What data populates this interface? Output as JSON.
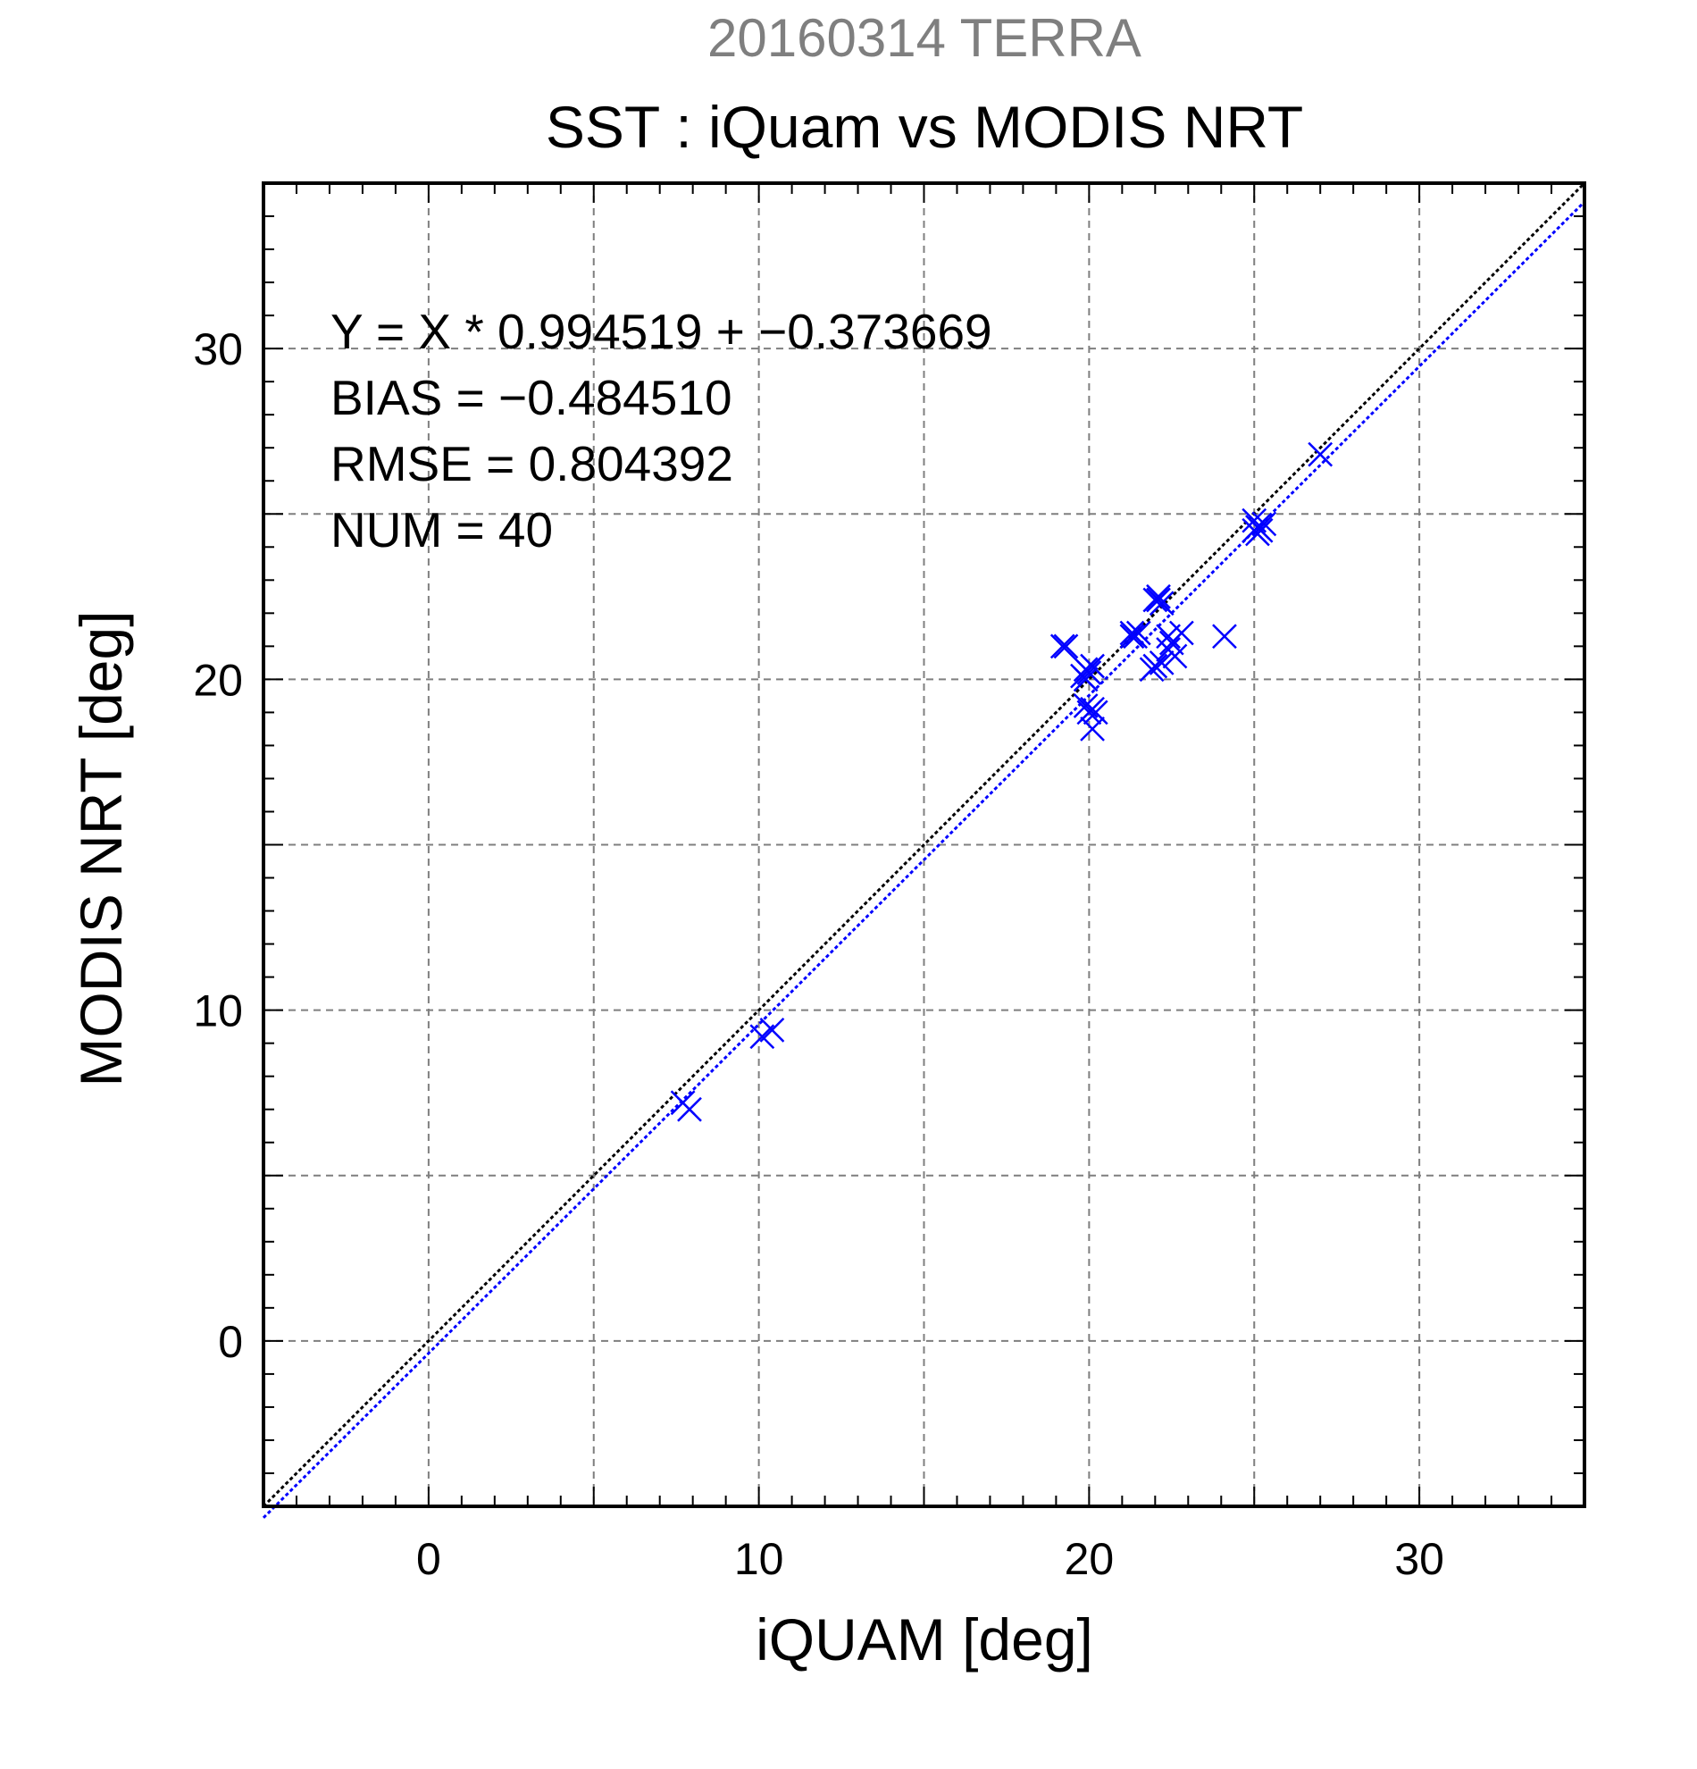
{
  "chart_data": {
    "type": "scatter",
    "suptitle": "20160314 TERRA",
    "title": "SST : iQuam vs MODIS NRT",
    "xlabel": "iQUAM [deg]",
    "ylabel": "MODIS NRT [deg]",
    "xlim": [
      -5,
      35
    ],
    "ylim": [
      -5,
      35
    ],
    "xticks": [
      0,
      10,
      20,
      30
    ],
    "yticks": [
      0,
      10,
      20,
      30
    ],
    "grid": true,
    "stats": {
      "equation": "Y = X * 0.994519 + −0.373669",
      "bias": "BIAS = −0.484510",
      "rmse": "RMSE = 0.804392",
      "num": "NUM = 40"
    },
    "fit": {
      "slope": 0.994519,
      "intercept": -0.373669
    },
    "colors": {
      "points": "#0000ff",
      "identity_line": "#000000",
      "fit_line": "#0000ff",
      "grid": "#7f7f7f",
      "suptitle": "#7f7f7f"
    },
    "points": [
      [
        7.7,
        7.2
      ],
      [
        7.9,
        7.0
      ],
      [
        10.1,
        9.2
      ],
      [
        10.4,
        9.4
      ],
      [
        19.2,
        21.0
      ],
      [
        19.3,
        21.0
      ],
      [
        19.8,
        20.1
      ],
      [
        19.9,
        20.3
      ],
      [
        20.0,
        20.2
      ],
      [
        20.1,
        20.4
      ],
      [
        20.1,
        19.1
      ],
      [
        20.2,
        19.0
      ],
      [
        20.1,
        18.5
      ],
      [
        19.9,
        19.2
      ],
      [
        21.3,
        21.3
      ],
      [
        21.4,
        21.3
      ],
      [
        21.5,
        21.4
      ],
      [
        21.3,
        21.4
      ],
      [
        22.0,
        22.4
      ],
      [
        22.1,
        22.4
      ],
      [
        22.2,
        22.3
      ],
      [
        22.0,
        20.4
      ],
      [
        22.2,
        20.5
      ],
      [
        22.4,
        21.3
      ],
      [
        22.5,
        21.1
      ],
      [
        22.6,
        20.7
      ],
      [
        22.8,
        21.4
      ],
      [
        22.4,
        20.9
      ],
      [
        24.1,
        21.3
      ],
      [
        25.0,
        24.8
      ],
      [
        25.1,
        24.6
      ],
      [
        25.2,
        24.5
      ],
      [
        25.3,
        24.7
      ],
      [
        25.1,
        24.4
      ],
      [
        27.0,
        26.8
      ],
      [
        21.9,
        20.3
      ],
      [
        20.0,
        19.0
      ],
      [
        19.9,
        20.0
      ],
      [
        25.0,
        24.5
      ],
      [
        22.1,
        22.5
      ]
    ]
  }
}
